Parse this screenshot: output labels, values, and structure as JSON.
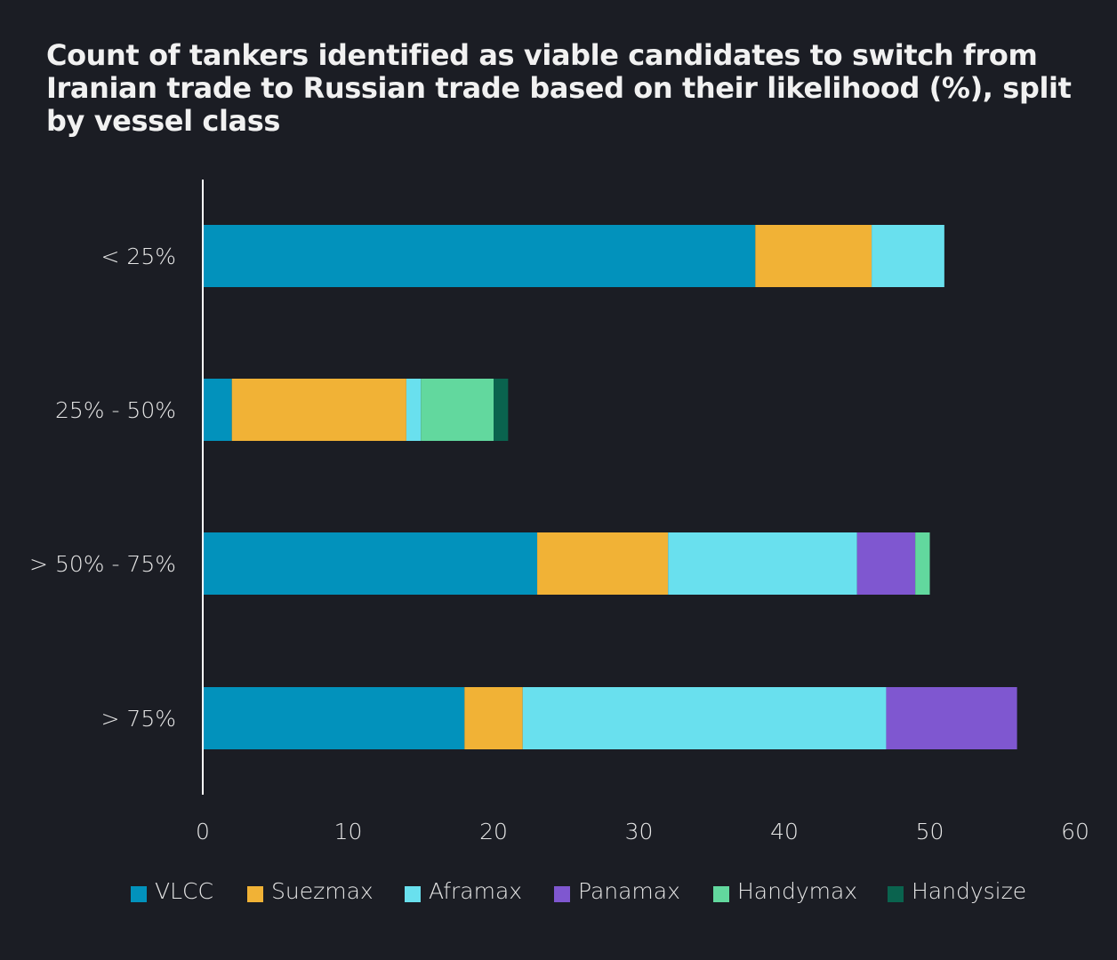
{
  "chart_data": {
    "type": "bar",
    "orientation": "horizontal",
    "stacked": true,
    "title": "Count of tankers identified as viable candidates to switch from Iranian trade to Russian trade based on their likelihood (%), split by vessel class",
    "categories": [
      "< 25%",
      "25% - 50%",
      "> 50% - 75%",
      "> 75%"
    ],
    "series": [
      {
        "name": "VLCC",
        "color": "#0292bc",
        "values": [
          38,
          2,
          23,
          18
        ]
      },
      {
        "name": "Suezmax",
        "color": "#f1b236",
        "values": [
          8,
          12,
          9,
          4
        ]
      },
      {
        "name": "Aframax",
        "color": "#69e0ee",
        "values": [
          5,
          1,
          13,
          25
        ]
      },
      {
        "name": "Panamax",
        "color": "#7f57d0",
        "values": [
          0,
          0,
          4,
          9
        ]
      },
      {
        "name": "Handymax",
        "color": "#62d89e",
        "values": [
          0,
          5,
          1,
          0
        ]
      },
      {
        "name": "Handysize",
        "color": "#0a634e",
        "values": [
          0,
          1,
          0,
          0
        ]
      }
    ],
    "xlim": [
      0,
      60
    ],
    "xticks": [
      "0",
      "10",
      "20",
      "30",
      "40",
      "50",
      "60"
    ],
    "grid": false,
    "legend": "bottom",
    "background": "#1b1d24",
    "text_color": "#e6e6e6",
    "axis_color": "#ffffff"
  }
}
